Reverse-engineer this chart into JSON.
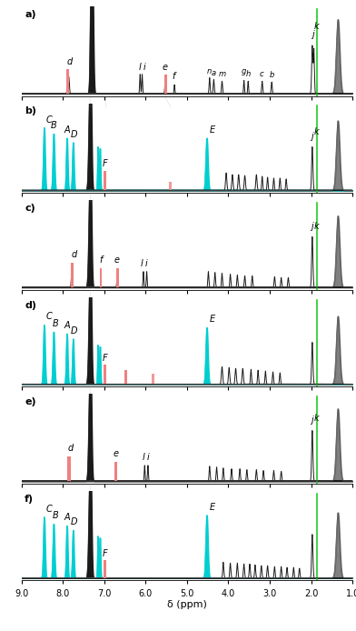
{
  "xlabel": "δ (ppm)",
  "xticks": [
    9.0,
    8.0,
    7.0,
    6.0,
    5.0,
    4.0,
    3.0,
    2.0,
    1.0
  ],
  "pink_color": "#F08080",
  "cyan_color": "#00CED1",
  "black_color": "#1a1a1a",
  "green_color": "#22CC22",
  "gray_color": "#888888",
  "tbu_color": "#555555",
  "xmin": 9.0,
  "xmax": 1.0
}
